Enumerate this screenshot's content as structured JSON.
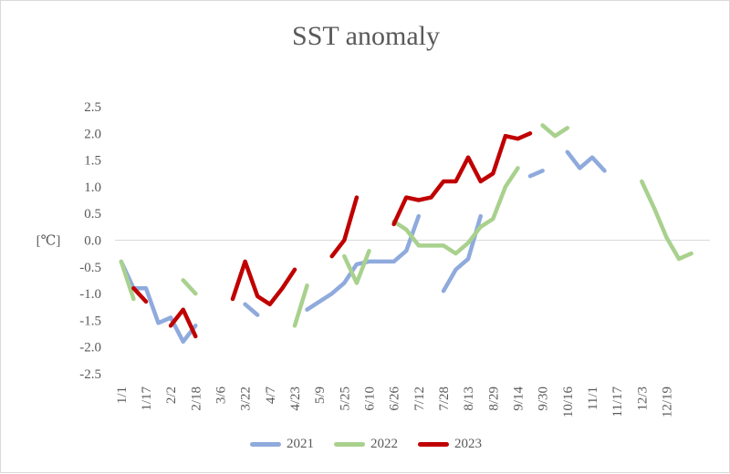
{
  "chart_data": {
    "type": "line",
    "title": "SST anomaly",
    "xlabel": "",
    "ylabel": "[℃]",
    "ylim": [
      -2.5,
      2.5
    ],
    "yticks": [
      "2.5",
      "2.0",
      "1.5",
      "1.0",
      "0.5",
      "0.0",
      "-0.5",
      "-1.0",
      "-1.5",
      "-2.0",
      "-2.5"
    ],
    "x_tick_labels": [
      "1/1",
      "1/17",
      "2/2",
      "2/18",
      "3/6",
      "3/22",
      "4/7",
      "4/23",
      "5/9",
      "5/25",
      "6/10",
      "6/26",
      "7/12",
      "7/28",
      "8/13",
      "8/29",
      "9/14",
      "9/30",
      "10/16",
      "11/1",
      "11/17",
      "12/3",
      "12/19"
    ],
    "series": [
      {
        "name": "2021",
        "color": "#8faadc",
        "values": [
          -0.4,
          -0.9,
          -0.9,
          -1.55,
          -1.45,
          -1.9,
          -1.6,
          null,
          null,
          null,
          -1.2,
          -1.4,
          null,
          null,
          null,
          -1.3,
          -1.15,
          -1.0,
          -0.8,
          -0.45,
          -0.4,
          -0.4,
          -0.4,
          -0.2,
          0.45,
          null,
          -0.95,
          -0.55,
          -0.35,
          0.45,
          null,
          null,
          null,
          1.2,
          1.3,
          null,
          1.65,
          1.35,
          1.55,
          1.3,
          null,
          null,
          null,
          null,
          null,
          null,
          null,
          null
        ]
      },
      {
        "name": "2022",
        "color": "#a9d18e",
        "values": [
          -0.4,
          -1.1,
          null,
          null,
          null,
          -0.75,
          -1.0,
          null,
          null,
          null,
          null,
          null,
          null,
          null,
          -1.6,
          -0.85,
          null,
          null,
          -0.3,
          -0.8,
          -0.2,
          null,
          0.35,
          0.2,
          -0.1,
          -0.1,
          -0.1,
          -0.25,
          -0.05,
          0.25,
          0.4,
          1.0,
          1.35,
          null,
          2.15,
          1.95,
          2.1,
          null,
          null,
          null,
          null,
          null,
          1.1,
          0.6,
          0.05,
          -0.35,
          -0.25,
          null
        ]
      },
      {
        "name": "2023",
        "color": "#c00000",
        "values": [
          null,
          -0.9,
          -1.15,
          null,
          -1.6,
          -1.3,
          -1.8,
          null,
          null,
          -1.1,
          -0.4,
          -1.05,
          -1.2,
          -0.9,
          -0.55,
          null,
          null,
          -0.3,
          0.0,
          0.8,
          null,
          null,
          0.3,
          0.8,
          0.75,
          0.8,
          1.1,
          1.1,
          1.55,
          1.1,
          1.25,
          1.95,
          1.9,
          2.0,
          null,
          null,
          null,
          null,
          null,
          null,
          null,
          null,
          null,
          null,
          null,
          null,
          null,
          null
        ]
      }
    ],
    "grid": false,
    "legend_position": "bottom"
  }
}
